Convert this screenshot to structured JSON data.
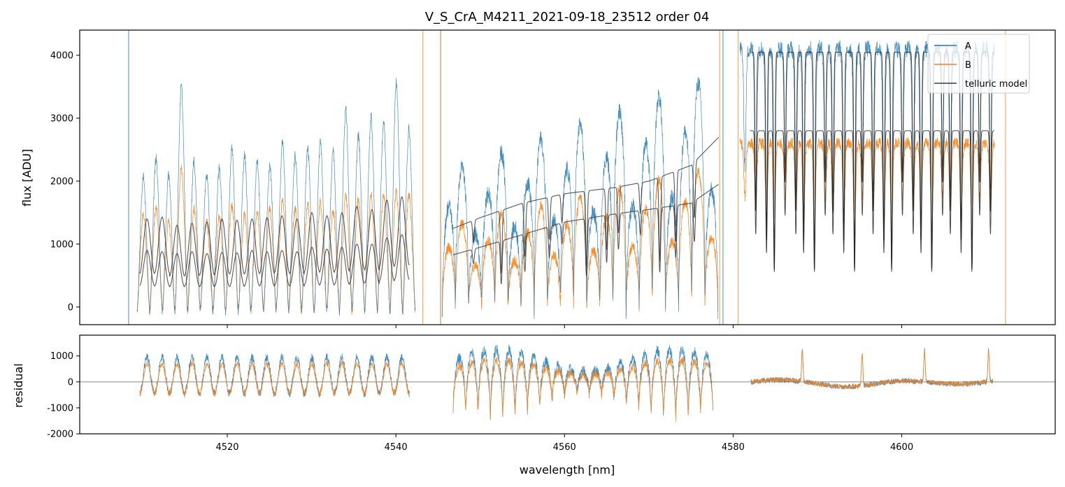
{
  "chart_data": [
    {
      "panel": "top",
      "type": "line",
      "title": "V_S_CrA_M4211_2021-09-18_23512  order 04",
      "xlabel": "",
      "ylabel": "flux [ADU]",
      "xlim": [
        4502.5,
        4618.2
      ],
      "ylim": [
        -280,
        4400
      ],
      "yticks": [
        0,
        1000,
        2000,
        3000,
        4000
      ],
      "xticks": [
        4520,
        4540,
        4560,
        4580,
        4600
      ],
      "legend": {
        "placement": "top-right",
        "entries": [
          "A",
          "B",
          "telluric model"
        ]
      },
      "series": [
        {
          "name": "A",
          "color": "#1f77b4",
          "range": [
            4508.2,
            4611.2
          ],
          "segments": [
            [
              4508.3,
              4543.2
            ],
            [
              4545.3,
              4578.4
            ],
            [
              4580.6,
              4611.0
            ]
          ],
          "peaks_A": [
            2000,
            2250,
            2000,
            3350,
            2200,
            2000,
            2100,
            2400,
            2300,
            2200,
            2150,
            2500,
            2300,
            2400,
            2500,
            2350,
            3000,
            2600,
            2900,
            2800,
            3400,
            2700
          ],
          "peaks_B": [
            1400,
            1500,
            1300,
            2100,
            1500,
            1300,
            1400,
            1550,
            1400,
            1450,
            1500,
            1600,
            1500,
            1550,
            1600,
            1450,
            1700,
            1650,
            1700,
            1700,
            1750,
            1700
          ]
        },
        {
          "name": "B",
          "color": "#ff7f0e",
          "range": [
            4508.2,
            4612.3
          ]
        },
        {
          "name": "telluric model",
          "color": "#3b3b3b",
          "continuum_upper": [
            [
              4546.8,
              1250
            ],
            [
              4550,
              1420
            ],
            [
              4555,
              1650
            ],
            [
              4560,
              1800
            ],
            [
              4566,
              1900
            ],
            [
              4570,
              2000
            ],
            [
              4575,
              2250
            ],
            [
              4578.3,
              2700
            ]
          ],
          "continuum_lower": [
            [
              4546.8,
              830
            ],
            [
              4550,
              950
            ],
            [
              4555,
              1150
            ],
            [
              4560,
              1350
            ],
            [
              4566,
              1480
            ],
            [
              4570,
              1550
            ],
            [
              4575,
              1650
            ],
            [
              4578.3,
              1950
            ]
          ],
          "band1_peaks_upper": [
            1400,
            1430,
            1300,
            1330,
            1350,
            1400,
            1380,
            1400,
            1420,
            1450,
            1400,
            1500,
            1450,
            1500,
            1600,
            1550,
            1700,
            1750
          ],
          "band1_peaks_lower": [
            900,
            880,
            850,
            880,
            850,
            870,
            860,
            900,
            880,
            900,
            880,
            950,
            920,
            950,
            1000,
            1000,
            1100,
            1150
          ]
        }
      ]
    },
    {
      "panel": "bottom",
      "type": "line",
      "title": "",
      "xlabel": "wavelength [nm]",
      "ylabel": "residual",
      "xlim": [
        4502.5,
        4618.2
      ],
      "ylim": [
        -2000,
        1800
      ],
      "yticks": [
        -2000,
        -1000,
        0,
        1000
      ],
      "xticks": [
        4520,
        4540,
        4560,
        4580,
        4600
      ],
      "zero_line": 0,
      "series": [
        {
          "name": "A",
          "color": "#1f77b4",
          "segments": [
            [
              4509.6,
              4541.6
            ],
            [
              4546.8,
              4577.6
            ],
            [
              4582.1,
              4610.8
            ]
          ]
        },
        {
          "name": "B",
          "color": "#ff7f0e",
          "segments": [
            [
              4509.6,
              4541.6
            ],
            [
              4546.8,
              4577.6
            ],
            [
              4582.1,
              4610.8
            ]
          ]
        }
      ]
    }
  ]
}
